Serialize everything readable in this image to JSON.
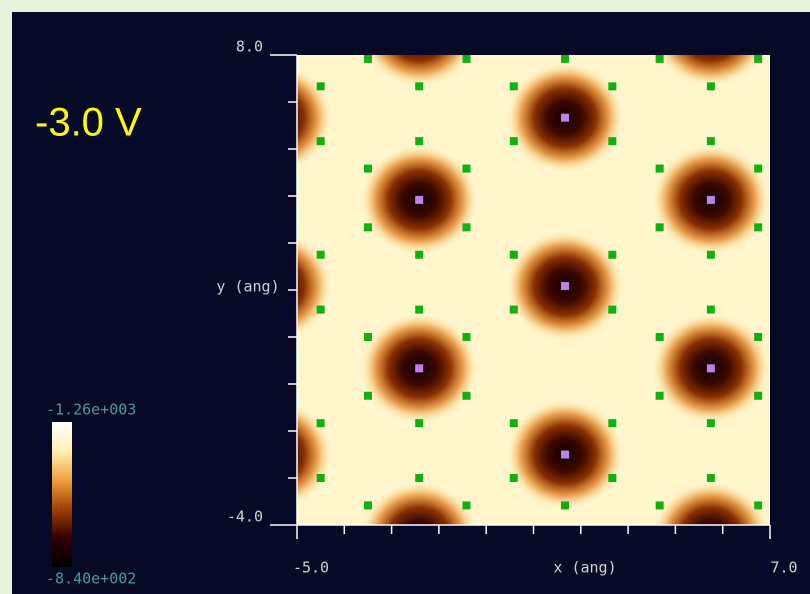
{
  "chart_data": {
    "type": "heatmap",
    "annotation": "-3.0 V",
    "xlabel": "x (ang)",
    "ylabel": "y (ang)",
    "xlim": [
      -5.0,
      7.0
    ],
    "ylim": [
      -4.0,
      8.0
    ],
    "xticks": [
      {
        "value": -5.0,
        "label": "-5.0"
      },
      {
        "value": 7.0,
        "label": "7.0"
      }
    ],
    "yticks": [
      {
        "value": -4.0,
        "label": "-4.0"
      },
      {
        "value": 8.0,
        "label": "8.0"
      }
    ],
    "xminorticks": [
      -3.8,
      -2.6,
      -1.4,
      -0.2,
      1.0,
      2.2,
      3.4,
      4.6,
      5.8
    ],
    "yminorticks": [
      -2.8,
      -1.6,
      -0.4,
      0.8,
      2.0,
      3.2,
      4.4,
      5.6,
      6.8
    ],
    "background_color": "#fff6cc",
    "colorbar": {
      "max_label": "-1.26e+003",
      "min_label": "-8.40e+002",
      "colors": [
        "#ffffff",
        "#fff0b0",
        "#f0a040",
        "#a04000",
        "#300000",
        "#000000"
      ]
    },
    "wells": {
      "x": [
        1.8,
        -1.9,
        5.5,
        1.8,
        -1.9,
        5.5,
        1.8,
        -5.6,
        -5.6,
        -5.6,
        -1.9,
        5.5,
        -1.9,
        5.5
      ],
      "y": [
        6.4,
        4.3,
        4.3,
        2.1,
        0.0,
        0.0,
        -2.2,
        6.4,
        2.1,
        -2.2,
        8.6,
        8.6,
        -4.3,
        -4.3
      ]
    },
    "series": [
      {
        "color": "#c080f0",
        "marker": "square",
        "x": [
          1.8,
          -1.9,
          5.5,
          1.8,
          -1.9,
          5.5,
          1.8
        ],
        "y": [
          6.4,
          4.3,
          4.3,
          2.1,
          0.0,
          0.0,
          -2.2
        ]
      },
      {
        "color": "#10b010",
        "marker": "square",
        "x": [
          -3.2,
          -0.7,
          1.8,
          4.2,
          6.7,
          -4.4,
          -1.9,
          0.5,
          3.0,
          5.5,
          -4.4,
          -1.9,
          0.5,
          3.0,
          5.5,
          -3.2,
          -0.7,
          4.2,
          6.7,
          -3.2,
          -0.7,
          4.2,
          6.7,
          -4.4,
          -1.9,
          0.5,
          3.0,
          5.5,
          -4.4,
          -1.9,
          0.5,
          3.0,
          5.5,
          -3.2,
          -0.7,
          4.2,
          6.7,
          -3.2,
          -0.7,
          4.2,
          6.7,
          -4.4,
          -1.9,
          0.5,
          3.0,
          5.5,
          -4.4,
          -1.9,
          0.5,
          3.0,
          5.5,
          -3.2,
          -0.7,
          1.8,
          4.2,
          6.7
        ],
        "y": [
          7.9,
          7.9,
          7.9,
          7.9,
          7.9,
          7.2,
          7.2,
          7.2,
          7.2,
          7.2,
          5.8,
          5.8,
          5.8,
          5.8,
          5.8,
          5.1,
          5.1,
          5.1,
          5.1,
          3.6,
          3.6,
          3.6,
          3.6,
          2.9,
          2.9,
          2.9,
          2.9,
          2.9,
          1.5,
          1.5,
          1.5,
          1.5,
          1.5,
          0.8,
          0.8,
          0.8,
          0.8,
          -0.7,
          -0.7,
          -0.7,
          -0.7,
          -1.4,
          -1.4,
          -1.4,
          -1.4,
          -1.4,
          -2.8,
          -2.8,
          -2.8,
          -2.8,
          -2.8,
          -3.5,
          -3.5,
          -3.5,
          -3.5,
          -3.5
        ]
      }
    ]
  }
}
